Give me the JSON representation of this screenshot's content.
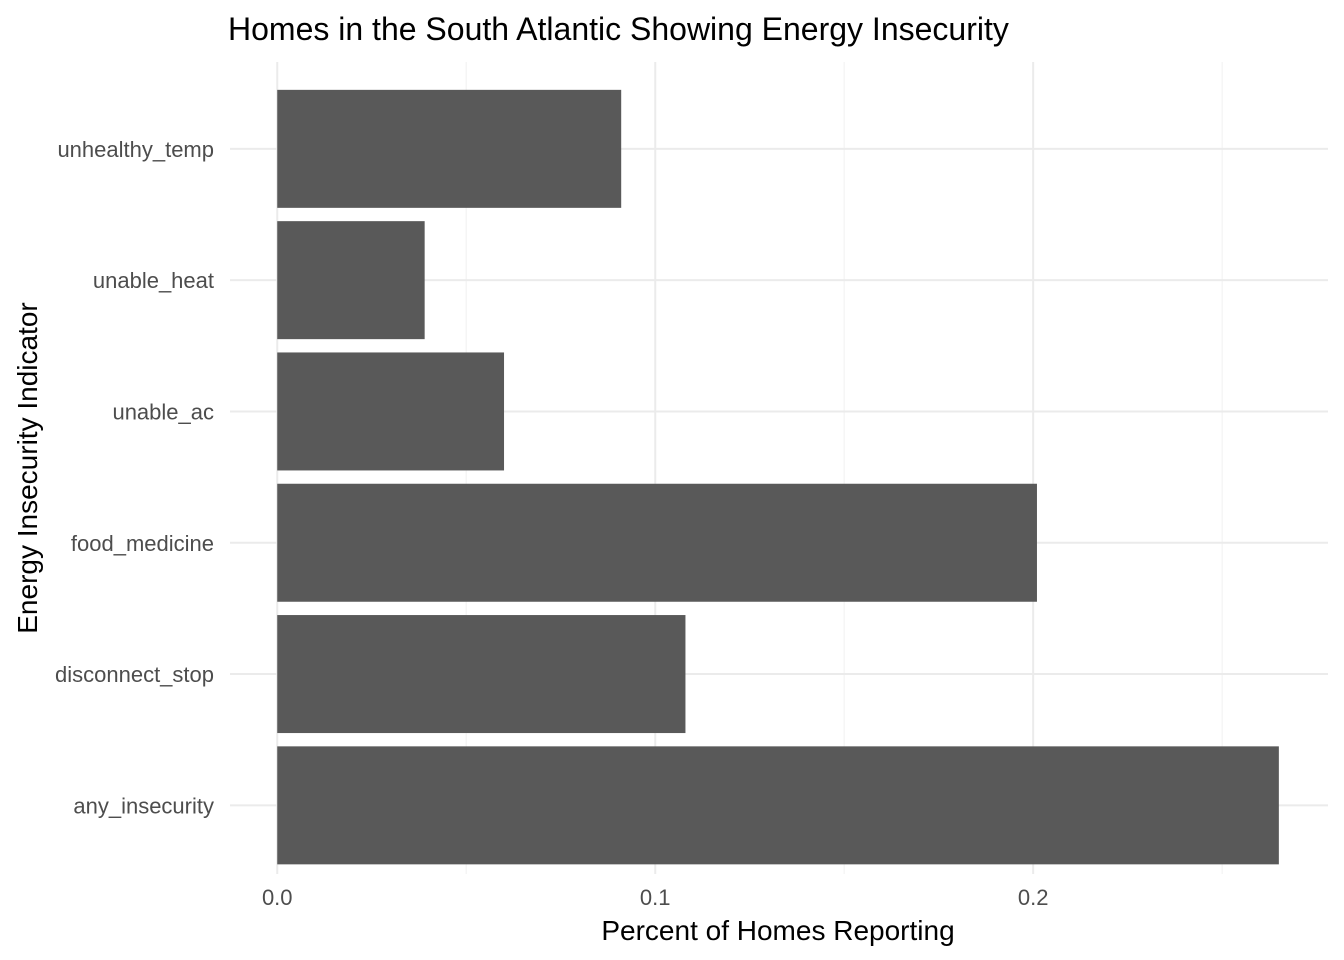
{
  "chart_data": {
    "type": "bar",
    "orientation": "horizontal",
    "title": "Homes in the South Atlantic Showing Energy Insecurity",
    "xlabel": "Percent of Homes Reporting",
    "ylabel": "Energy Insecurity Indicator",
    "categories": [
      "any_insecurity",
      "disconnect_stop",
      "food_medicine",
      "unable_ac",
      "unable_heat",
      "unhealthy_temp"
    ],
    "values": [
      0.265,
      0.108,
      0.201,
      0.06,
      0.039,
      0.091
    ],
    "xticks": [
      0.0,
      0.1,
      0.2
    ],
    "xtick_labels": [
      "0.0",
      "0.1",
      "0.2"
    ],
    "xlim": [
      -0.0125,
      0.278
    ],
    "grid": true,
    "bar_color": "#595959",
    "gridline_color": "#ebebeb"
  }
}
